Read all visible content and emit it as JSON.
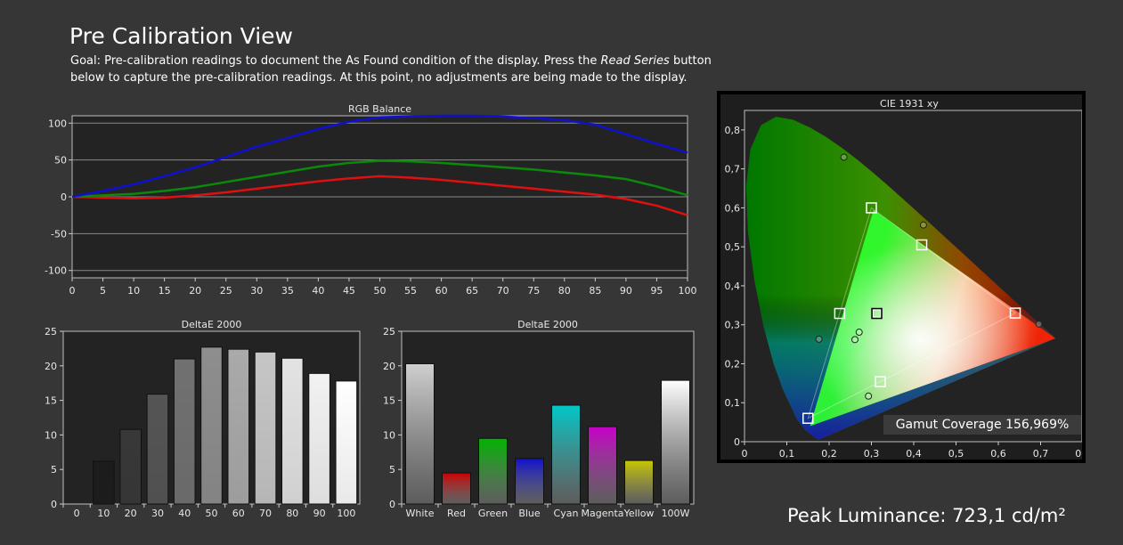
{
  "header": {
    "title": "Pre Calibration View",
    "goal_prefix": "Goal: Pre-calibration readings to document the As Found condition of the display. Press the ",
    "goal_italic": "Read Series",
    "goal_suffix": " button below to capture the pre-calibration readings. At this point, no adjustments are being made to the display."
  },
  "footer": {
    "peak_luminance": "Peak Luminance: 723,1 cd/m²"
  },
  "chart_data": [
    {
      "type": "line",
      "title": "RGB Balance",
      "x": [
        0,
        5,
        10,
        15,
        20,
        25,
        30,
        35,
        40,
        45,
        50,
        55,
        60,
        65,
        70,
        75,
        80,
        85,
        90,
        95,
        100
      ],
      "xlim": [
        0,
        100
      ],
      "ylim": [
        -110,
        110
      ],
      "yticks": [
        100,
        50,
        0,
        -50,
        -100
      ],
      "series": [
        {
          "color": "#e01010",
          "values": [
            0,
            -1,
            -2,
            -1,
            2,
            6,
            11,
            16,
            21,
            25,
            28,
            26,
            23,
            19,
            15,
            11,
            7,
            3,
            -3,
            -12,
            -25
          ]
        },
        {
          "color": "#0a8a0a",
          "values": [
            0,
            2,
            4,
            8,
            13,
            20,
            27,
            34,
            41,
            46,
            49,
            48,
            46,
            43,
            40,
            37,
            33,
            29,
            24,
            14,
            2
          ]
        },
        {
          "color": "#1010d0",
          "values": [
            0,
            8,
            17,
            28,
            40,
            54,
            68,
            80,
            92,
            102,
            108,
            109,
            110,
            110,
            109,
            107,
            104,
            98,
            85,
            72,
            60
          ]
        }
      ],
      "grid": true
    },
    {
      "type": "bar",
      "title": "DeltaE 2000",
      "categories": [
        "0",
        "10",
        "20",
        "30",
        "40",
        "50",
        "60",
        "70",
        "80",
        "90",
        "100"
      ],
      "values": [
        0,
        6.2,
        10.8,
        15.9,
        21.0,
        22.7,
        22.4,
        22.0,
        21.1,
        18.9,
        17.8
      ],
      "colors": [
        "#000000",
        "#1c1c1c",
        "#383838",
        "#555555",
        "#717171",
        "#8e8e8e",
        "#aaaaaa",
        "#c6c6c6",
        "#e3e3e3",
        "#f2f2f2",
        "#ffffff"
      ],
      "ylim": [
        0,
        25
      ],
      "yticks": [
        25,
        20,
        15,
        10,
        5,
        0
      ]
    },
    {
      "type": "bar",
      "title": "DeltaE 2000",
      "categories": [
        "White",
        "Red",
        "Green",
        "Blue",
        "Cyan",
        "Magenta",
        "Yellow",
        "100W"
      ],
      "values": [
        20.3,
        4.5,
        9.5,
        6.6,
        14.3,
        11.2,
        6.3,
        17.9
      ],
      "colors": [
        "#d0d0d0",
        "#cc0000",
        "#00b400",
        "#1010d0",
        "#00c8c8",
        "#c800c8",
        "#c8c800",
        "#ffffff"
      ],
      "ylim": [
        0,
        25
      ],
      "yticks": [
        25,
        20,
        15,
        10,
        5,
        0
      ]
    },
    {
      "type": "scatter",
      "title": "CIE 1931 xy",
      "xlim": [
        0,
        0.8
      ],
      "ylim": [
        0,
        0.85
      ],
      "xticks": [
        "0",
        "0,1",
        "0,2",
        "0,3",
        "0,4",
        "0,5",
        "0,6",
        "0,7",
        "0,8"
      ],
      "yticks": [
        "0",
        "0,1",
        "0,2",
        "0,3",
        "0,4",
        "0,5",
        "0,6",
        "0,7",
        "0,8"
      ],
      "target_gamut": [
        [
          0.64,
          0.33
        ],
        [
          0.3,
          0.6
        ],
        [
          0.15,
          0.06
        ]
      ],
      "measured_gamut": [
        [
          0.735,
          0.265
        ],
        [
          0.305,
          0.595
        ],
        [
          0.155,
          0.04
        ]
      ],
      "targets": [
        [
          0.64,
          0.33
        ],
        [
          0.3,
          0.6
        ],
        [
          0.15,
          0.06
        ],
        [
          0.225,
          0.329
        ],
        [
          0.321,
          0.154
        ],
        [
          0.419,
          0.505
        ],
        [
          0.3127,
          0.329
        ]
      ],
      "measured": [
        [
          0.696,
          0.302
        ],
        [
          0.235,
          0.73
        ],
        [
          0.423,
          0.556
        ],
        [
          0.176,
          0.263
        ],
        [
          0.293,
          0.117
        ],
        [
          0.271,
          0.281
        ],
        [
          0.261,
          0.262
        ]
      ],
      "gamut_coverage": "Gamut Coverage 156,969%"
    }
  ]
}
